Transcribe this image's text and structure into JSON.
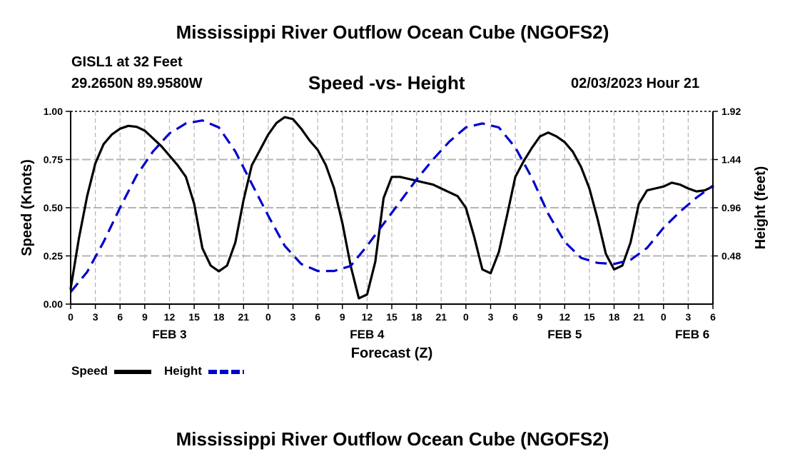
{
  "page": {
    "title_top": "Mississippi River Outflow Ocean Cube (NGOFS2)",
    "title_bottom": "Mississippi River Outflow Ocean Cube (NGOFS2)"
  },
  "header": {
    "station": "GISL1 at 32 Feet",
    "coords": "29.2650N  89.9580W",
    "subtitle": "Speed -vs- Height",
    "datetime": "02/03/2023 Hour 21"
  },
  "legend": {
    "speed_label": "Speed",
    "height_label": "Height"
  },
  "colors": {
    "speed": "#000000",
    "height": "#0000cc",
    "grid": "#b4b4b4"
  },
  "chart_data": {
    "type": "line",
    "xlabel": "Forecast (Z)",
    "ylabel_left": "Speed (Knots)",
    "ylabel_right": "Height (feet)",
    "x_range_hours": [
      0,
      78
    ],
    "x_ticks": [
      {
        "h": 0,
        "label": "0"
      },
      {
        "h": 3,
        "label": "3"
      },
      {
        "h": 6,
        "label": "6"
      },
      {
        "h": 9,
        "label": "9"
      },
      {
        "h": 12,
        "label": "12"
      },
      {
        "h": 15,
        "label": "15"
      },
      {
        "h": 18,
        "label": "18"
      },
      {
        "h": 21,
        "label": "21"
      },
      {
        "h": 24,
        "label": "0"
      },
      {
        "h": 27,
        "label": "3"
      },
      {
        "h": 30,
        "label": "6"
      },
      {
        "h": 33,
        "label": "9"
      },
      {
        "h": 36,
        "label": "12"
      },
      {
        "h": 39,
        "label": "15"
      },
      {
        "h": 42,
        "label": "18"
      },
      {
        "h": 45,
        "label": "21"
      },
      {
        "h": 48,
        "label": "0"
      },
      {
        "h": 51,
        "label": "3"
      },
      {
        "h": 54,
        "label": "6"
      },
      {
        "h": 57,
        "label": "9"
      },
      {
        "h": 60,
        "label": "12"
      },
      {
        "h": 63,
        "label": "15"
      },
      {
        "h": 66,
        "label": "18"
      },
      {
        "h": 69,
        "label": "21"
      },
      {
        "h": 72,
        "label": "0"
      },
      {
        "h": 75,
        "label": "3"
      },
      {
        "h": 78,
        "label": "6"
      }
    ],
    "date_labels": [
      {
        "h": 12,
        "label": "FEB 3"
      },
      {
        "h": 36,
        "label": "FEB 4"
      },
      {
        "h": 60,
        "label": "FEB 5"
      },
      {
        "h": 75.5,
        "label": "FEB 6"
      }
    ],
    "y_left": {
      "min": 0,
      "max": 1.0,
      "ticks": [
        "0.00",
        "0.25",
        "0.50",
        "0.75",
        "1.00"
      ]
    },
    "y_right": {
      "min": 0,
      "max": 1.92,
      "ticks": [
        "0.48",
        "0.96",
        "1.44",
        "1.92"
      ]
    },
    "series": [
      {
        "name": "Speed",
        "axis": "left",
        "style": "solid",
        "x": [
          0,
          1,
          2,
          3,
          4,
          5,
          6,
          7,
          8,
          9,
          10,
          11,
          12,
          13,
          14,
          15,
          16,
          17,
          18,
          19,
          20,
          21,
          22,
          23,
          24,
          25,
          26,
          27,
          28,
          29,
          30,
          31,
          32,
          33,
          34,
          35,
          36,
          37,
          38,
          39,
          40,
          41,
          42,
          43,
          44,
          45,
          46,
          47,
          48,
          49,
          50,
          51,
          52,
          53,
          54,
          55,
          56,
          57,
          58,
          59,
          60,
          61,
          62,
          63,
          64,
          65,
          66,
          67,
          68,
          69,
          70,
          71,
          72,
          73,
          74,
          75,
          76,
          77,
          78
        ],
        "values": [
          0.08,
          0.34,
          0.56,
          0.73,
          0.83,
          0.88,
          0.91,
          0.925,
          0.92,
          0.9,
          0.86,
          0.82,
          0.77,
          0.72,
          0.66,
          0.52,
          0.29,
          0.2,
          0.17,
          0.2,
          0.32,
          0.54,
          0.72,
          0.8,
          0.88,
          0.94,
          0.97,
          0.96,
          0.91,
          0.85,
          0.8,
          0.72,
          0.6,
          0.42,
          0.2,
          0.03,
          0.05,
          0.22,
          0.55,
          0.66,
          0.66,
          0.65,
          0.64,
          0.63,
          0.62,
          0.6,
          0.58,
          0.56,
          0.5,
          0.35,
          0.18,
          0.16,
          0.27,
          0.46,
          0.66,
          0.74,
          0.81,
          0.87,
          0.89,
          0.87,
          0.84,
          0.79,
          0.71,
          0.6,
          0.44,
          0.26,
          0.18,
          0.2,
          0.32,
          0.52,
          0.59,
          0.6,
          0.61,
          0.63,
          0.62,
          0.6,
          0.585,
          0.59,
          0.61
        ]
      },
      {
        "name": "Height",
        "axis": "right",
        "style": "dashed",
        "x": [
          0,
          2,
          4,
          6,
          8,
          10,
          12,
          14,
          16,
          18,
          20,
          22,
          24,
          26,
          28,
          30,
          32,
          34,
          36,
          38,
          40,
          42,
          44,
          46,
          48,
          50,
          52,
          54,
          56,
          58,
          60,
          62,
          64,
          66,
          68,
          70,
          72,
          74,
          76,
          78
        ],
        "values": [
          0.12,
          0.32,
          0.62,
          0.96,
          1.28,
          1.52,
          1.7,
          1.8,
          1.83,
          1.76,
          1.52,
          1.2,
          0.88,
          0.58,
          0.4,
          0.33,
          0.33,
          0.38,
          0.58,
          0.8,
          1.02,
          1.24,
          1.44,
          1.62,
          1.76,
          1.8,
          1.76,
          1.56,
          1.26,
          0.9,
          0.62,
          0.46,
          0.41,
          0.4,
          0.44,
          0.56,
          0.76,
          0.92,
          1.06,
          1.18
        ]
      }
    ]
  }
}
